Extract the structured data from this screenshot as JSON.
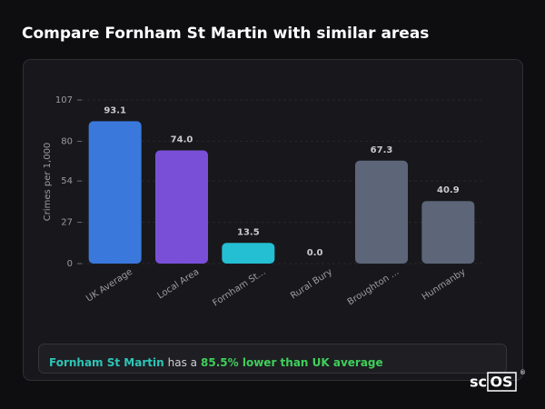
{
  "title": "Compare Fornham St Martin with similar areas",
  "chart_data": {
    "type": "bar",
    "y_label": "Crimes per 1,000",
    "categories": [
      "UK Average",
      "Local Area",
      "Fornham St...",
      "Rural Bury",
      "Broughton ...",
      "Hunmanby"
    ],
    "values": [
      93.1,
      74.0,
      13.5,
      0.0,
      67.3,
      40.9
    ],
    "value_labels": [
      "93.1",
      "74.0",
      "13.5",
      "0.0",
      "67.3",
      "40.9"
    ],
    "colors": [
      "#3a78dc",
      "#7a4fd8",
      "#24bfd2",
      "#5c6678",
      "#5c6678",
      "#5c6678"
    ],
    "ylim": [
      0,
      107
    ],
    "yticks": [
      0,
      27,
      54,
      80,
      107
    ],
    "grid": true
  },
  "summary": {
    "area": "Fornham St Martin",
    "text": "has a",
    "highlight": "85.5% lower than UK average"
  },
  "logo": {
    "prefix": "sc",
    "box": "OS",
    "mark": "®"
  }
}
